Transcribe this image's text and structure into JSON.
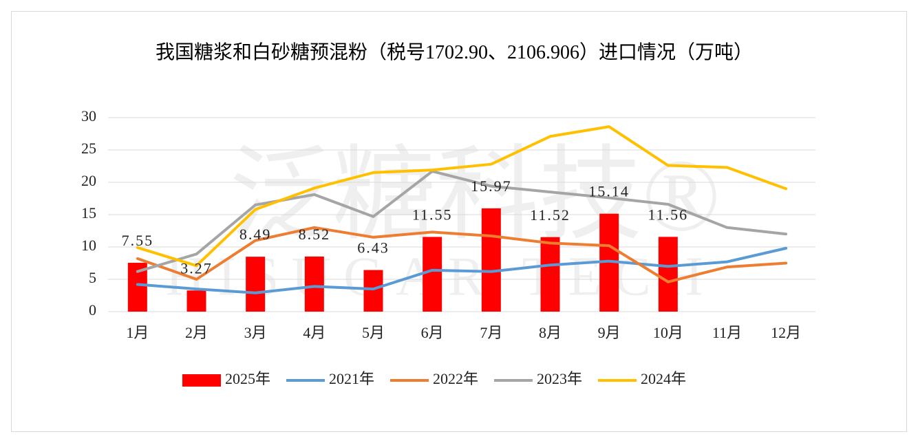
{
  "chart_data": {
    "type": "combo",
    "title": "我国糖浆和白砂糖预混粉（税号1702.90、2106.906）进口情况（万吨）",
    "watermark": "泛糖科技®",
    "watermark_en": "HISUGAR TECH",
    "categories": [
      "1月",
      "2月",
      "3月",
      "4月",
      "5月",
      "6月",
      "7月",
      "8月",
      "9月",
      "10月",
      "11月",
      "12月"
    ],
    "series": [
      {
        "name": "2025年",
        "type": "bar",
        "color": "#ff0000",
        "values": [
          7.55,
          3.27,
          8.49,
          8.52,
          6.43,
          11.55,
          15.97,
          11.52,
          15.14,
          11.56,
          null,
          null
        ]
      },
      {
        "name": "2021年",
        "type": "line",
        "color": "#5b9bd5",
        "values": [
          4.2,
          3.5,
          2.9,
          3.9,
          3.5,
          6.4,
          6.2,
          7.2,
          7.8,
          7.0,
          7.7,
          9.8
        ]
      },
      {
        "name": "2022年",
        "type": "line",
        "color": "#ed7d31",
        "values": [
          8.2,
          5.0,
          11.0,
          13.0,
          11.5,
          12.3,
          11.7,
          10.6,
          10.2,
          4.6,
          6.9,
          7.5
        ]
      },
      {
        "name": "2023年",
        "type": "line",
        "color": "#a5a5a5",
        "values": [
          6.2,
          8.9,
          16.5,
          18.1,
          14.7,
          21.7,
          19.4,
          18.5,
          17.6,
          16.6,
          13.0,
          12.0
        ]
      },
      {
        "name": "2024年",
        "type": "line",
        "color": "#ffc000",
        "values": [
          9.9,
          7.1,
          15.8,
          19.1,
          21.5,
          21.9,
          22.8,
          27.1,
          28.6,
          22.6,
          22.3,
          19.0
        ]
      }
    ],
    "ylim": [
      0,
      30
    ],
    "yticks": [
      0,
      5,
      10,
      15,
      20,
      25,
      30
    ],
    "grid": true,
    "legend": "bottom"
  }
}
